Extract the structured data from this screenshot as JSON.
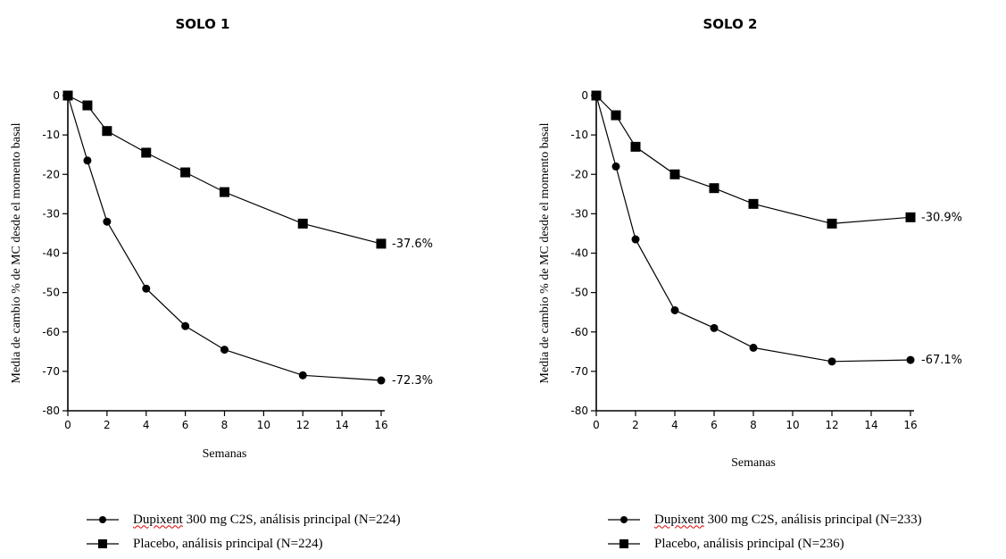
{
  "chart_data": [
    {
      "type": "line",
      "title": "SOLO 1",
      "xlabel": "Semanas",
      "ylabel": "Media de cambio % de MC desde el momento basal",
      "xlim": [
        0,
        16
      ],
      "ylim": [
        -80,
        0
      ],
      "x_ticks": [
        "0",
        "2",
        "4",
        "6",
        "8",
        "10",
        "12",
        "14",
        "16"
      ],
      "y_ticks": [
        "0",
        "-10",
        "-20",
        "-30",
        "-40",
        "-50",
        "-60",
        "-70",
        "-80"
      ],
      "x": [
        0,
        1,
        2,
        4,
        6,
        8,
        12,
        16
      ],
      "grid": false,
      "series": [
        {
          "marker": "circle",
          "values": [
            0,
            -16.5,
            -32,
            -49,
            -58.5,
            -64.5,
            -71,
            -72.3
          ],
          "end_label": "-72.3%"
        },
        {
          "marker": "square",
          "values": [
            0,
            -2.5,
            -9,
            -14.5,
            -19.5,
            -24.5,
            -32.5,
            -37.6
          ],
          "end_label": "-37.6%"
        }
      ],
      "legend": [
        {
          "marker": "circle",
          "brand": "Dupixent",
          "rest": " 300 mg C2S, análisis principal (N=224)"
        },
        {
          "marker": "square",
          "brand": "",
          "rest": "Placebo, análisis principal (N=224)"
        }
      ]
    },
    {
      "type": "line",
      "title": "SOLO 2",
      "xlabel": "Semanas",
      "ylabel": "Media de cambio % de MC desde el momento basal",
      "xlim": [
        0,
        16
      ],
      "ylim": [
        -80,
        0
      ],
      "x_ticks": [
        "0",
        "2",
        "4",
        "6",
        "8",
        "10",
        "12",
        "14",
        "16"
      ],
      "y_ticks": [
        "0",
        "-10",
        "-20",
        "-30",
        "-40",
        "-50",
        "-60",
        "-70",
        "-80"
      ],
      "x": [
        0,
        1,
        2,
        4,
        6,
        8,
        12,
        16
      ],
      "grid": false,
      "series": [
        {
          "marker": "circle",
          "values": [
            0,
            -18,
            -36.5,
            -54.5,
            -59,
            -64,
            -67.5,
            -67.1
          ],
          "end_label": "-67.1%"
        },
        {
          "marker": "square",
          "values": [
            0,
            -5,
            -13,
            -20,
            -23.5,
            -27.5,
            -32.5,
            -30.9
          ],
          "end_label": "-30.9%"
        }
      ],
      "legend": [
        {
          "marker": "circle",
          "brand": "Dupixent",
          "rest": " 300 mg C2S, análisis principal (N=233)"
        },
        {
          "marker": "square",
          "brand": "",
          "rest": "Placebo, análisis principal (N=236)"
        }
      ]
    }
  ]
}
